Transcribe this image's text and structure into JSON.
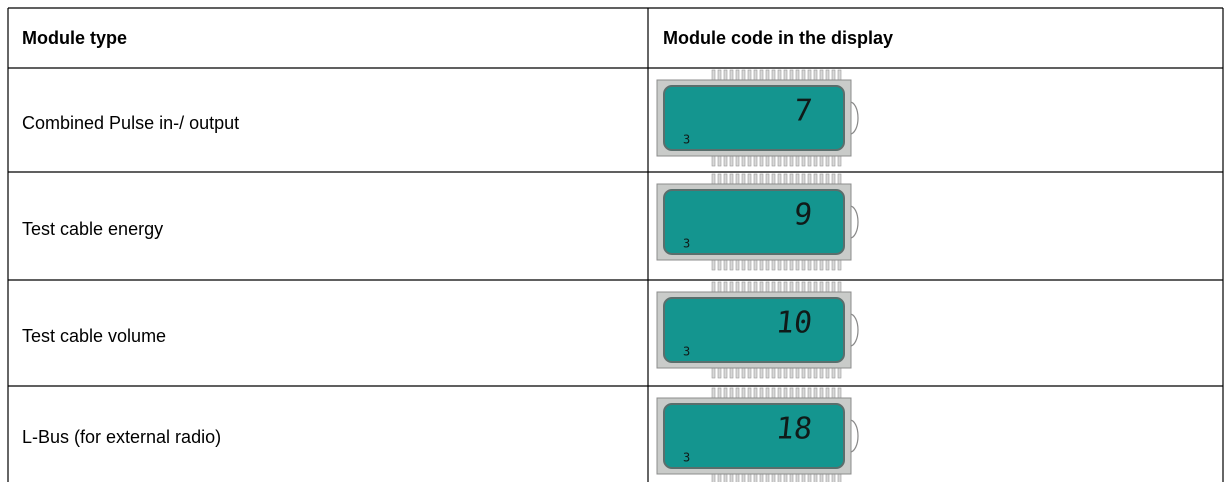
{
  "table": {
    "header": [
      "Module type",
      "Module code in the display"
    ],
    "rows": [
      {
        "module_type": "Combined Pulse in-/ output",
        "code": "7",
        "sub": "3"
      },
      {
        "module_type": "Test cable energy",
        "code": "9",
        "sub": "3"
      },
      {
        "module_type": "Test cable volume",
        "code": "10",
        "sub": "3"
      },
      {
        "module_type": "L-Bus (for external radio)",
        "code": "18",
        "sub": "3"
      }
    ]
  }
}
